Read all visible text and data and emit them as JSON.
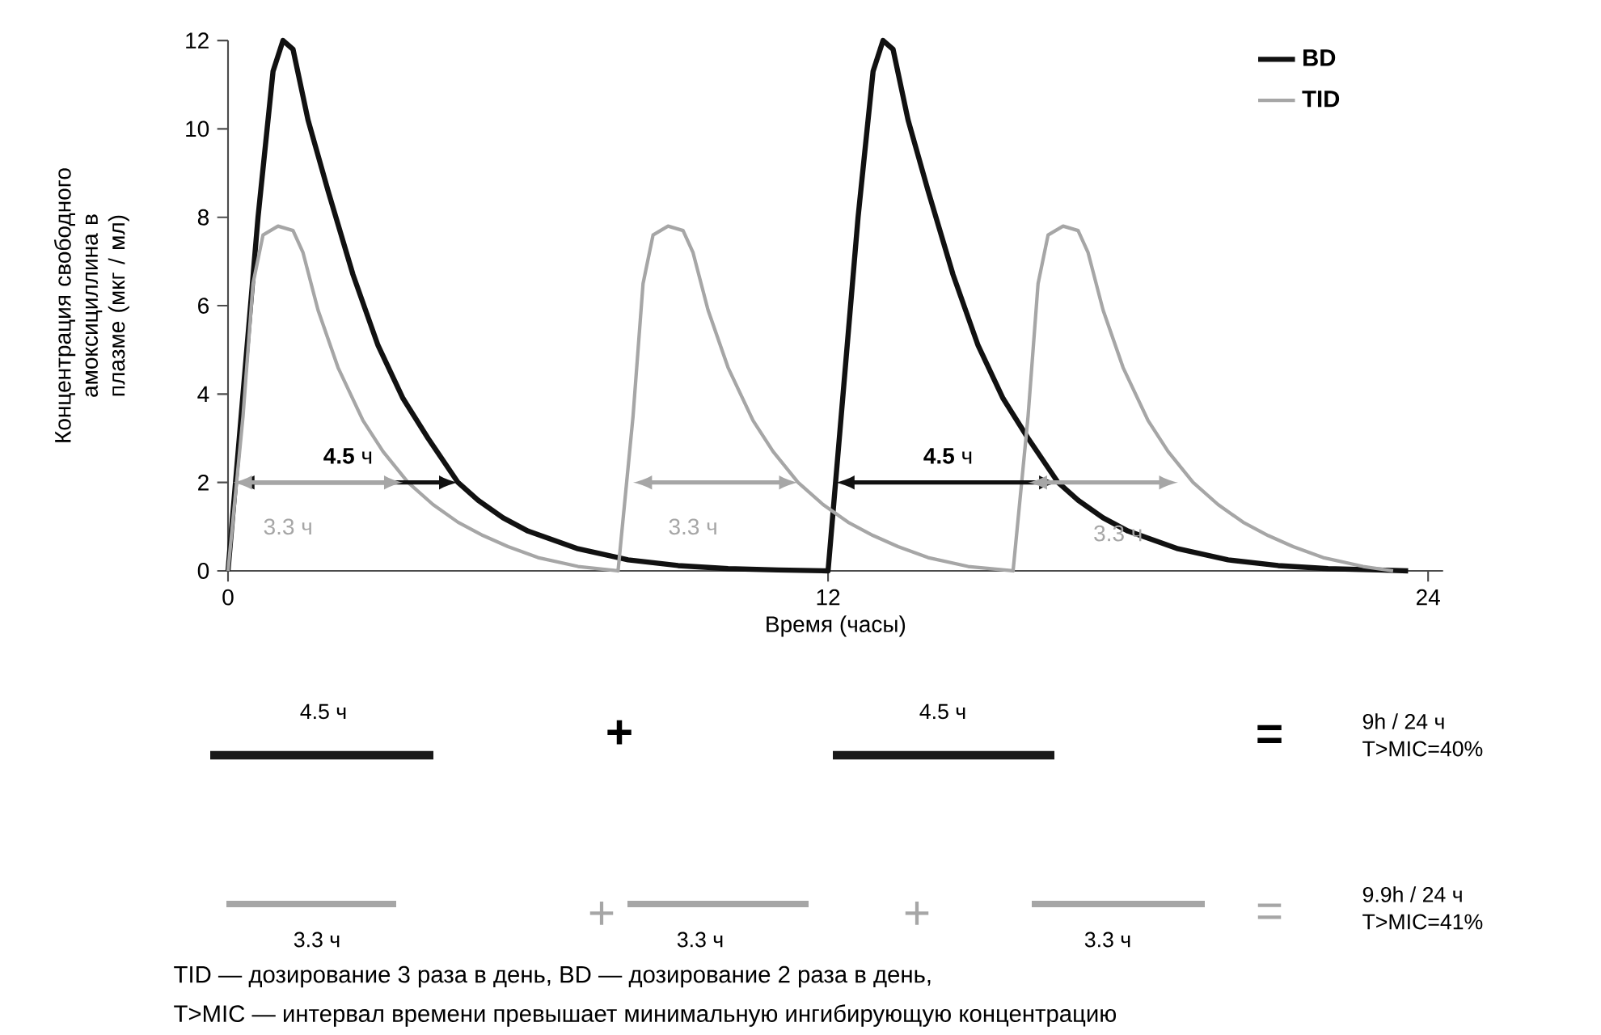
{
  "chart_data": {
    "type": "line",
    "xlabel": "Время (часы)",
    "ylabel": "Концентрация свободного амоксициллина в плазме (мкг / мл)",
    "xlim": [
      0,
      24.3
    ],
    "ylim": [
      0,
      12
    ],
    "xticks": [
      0,
      12,
      24
    ],
    "yticks": [
      0,
      2,
      4,
      6,
      8,
      10,
      12
    ],
    "grid": false,
    "legend": "top right",
    "series": [
      {
        "name": "BD",
        "color": "#111111",
        "x": [
          0,
          0.3,
          0.6,
          0.9,
          1.1,
          1.3,
          1.6,
          2,
          2.5,
          3,
          3.5,
          4,
          4.6,
          5,
          5.5,
          6,
          7,
          8,
          9,
          10,
          11,
          12,
          12.3,
          12.6,
          12.9,
          13.1,
          13.3,
          13.6,
          14,
          14.5,
          15,
          15.5,
          16,
          16.6,
          17,
          17.5,
          18,
          19,
          20,
          21,
          22,
          23,
          23.6
        ],
        "values": [
          0,
          4,
          8,
          11.3,
          12,
          11.8,
          10.2,
          8.6,
          6.7,
          5.1,
          3.9,
          3,
          2,
          1.6,
          1.2,
          0.9,
          0.5,
          0.25,
          0.12,
          0.05,
          0.02,
          0,
          4,
          8,
          11.3,
          12,
          11.8,
          10.2,
          8.6,
          6.7,
          5.1,
          3.9,
          3,
          2,
          1.6,
          1.2,
          0.9,
          0.5,
          0.25,
          0.12,
          0.05,
          0.02,
          0
        ]
      },
      {
        "name": "TID",
        "color": "#a6a6a6",
        "x": [
          0,
          0.3,
          0.5,
          0.7,
          1.0,
          1.3,
          1.5,
          1.8,
          2.2,
          2.7,
          3.1,
          3.6,
          4.1,
          4.6,
          5.1,
          5.6,
          6.2,
          7.0,
          7.8,
          8.1,
          8.3,
          8.5,
          8.8,
          9.1,
          9.3,
          9.6,
          10,
          10.5,
          10.9,
          11.4,
          11.9,
          12.4,
          12.9,
          13.4,
          14.0,
          14.8,
          15.7,
          16.0,
          16.2,
          16.4,
          16.7,
          17.0,
          17.2,
          17.5,
          17.9,
          18.4,
          18.8,
          19.3,
          19.8,
          20.3,
          20.8,
          21.3,
          21.9,
          22.7,
          23.3
        ],
        "values": [
          0,
          3.5,
          6.5,
          7.6,
          7.8,
          7.7,
          7.2,
          5.9,
          4.6,
          3.4,
          2.7,
          2,
          1.5,
          1.1,
          0.8,
          0.55,
          0.3,
          0.1,
          0,
          3.5,
          6.5,
          7.6,
          7.8,
          7.7,
          7.2,
          5.9,
          4.6,
          3.4,
          2.7,
          2,
          1.5,
          1.1,
          0.8,
          0.55,
          0.3,
          0.1,
          0,
          3.5,
          6.5,
          7.6,
          7.8,
          7.7,
          7.2,
          5.9,
          4.6,
          3.4,
          2.7,
          2,
          1.5,
          1.1,
          0.8,
          0.55,
          0.3,
          0.1,
          0
        ]
      }
    ],
    "annotations": [
      "**4.5** ч",
      "3.3 ч",
      "3.3 ч",
      "**4.5** ч",
      "3.3 ч",
      "4.5 ч",
      "+",
      "4.5 ч",
      "=",
      "9h / 24 ч",
      "T>MIC=40%",
      "3.3 ч",
      "+",
      "3.3 ч",
      "+",
      "3.3 ч",
      "=",
      "9.9h / 24 ч",
      "T>MIC=41%",
      "TID — дозирование 3 раза в день, BD — дозирование 2 раза в день,",
      "T>MIC — интервал времени превышает минимальную ингибирующую концентрацию"
    ]
  }
}
